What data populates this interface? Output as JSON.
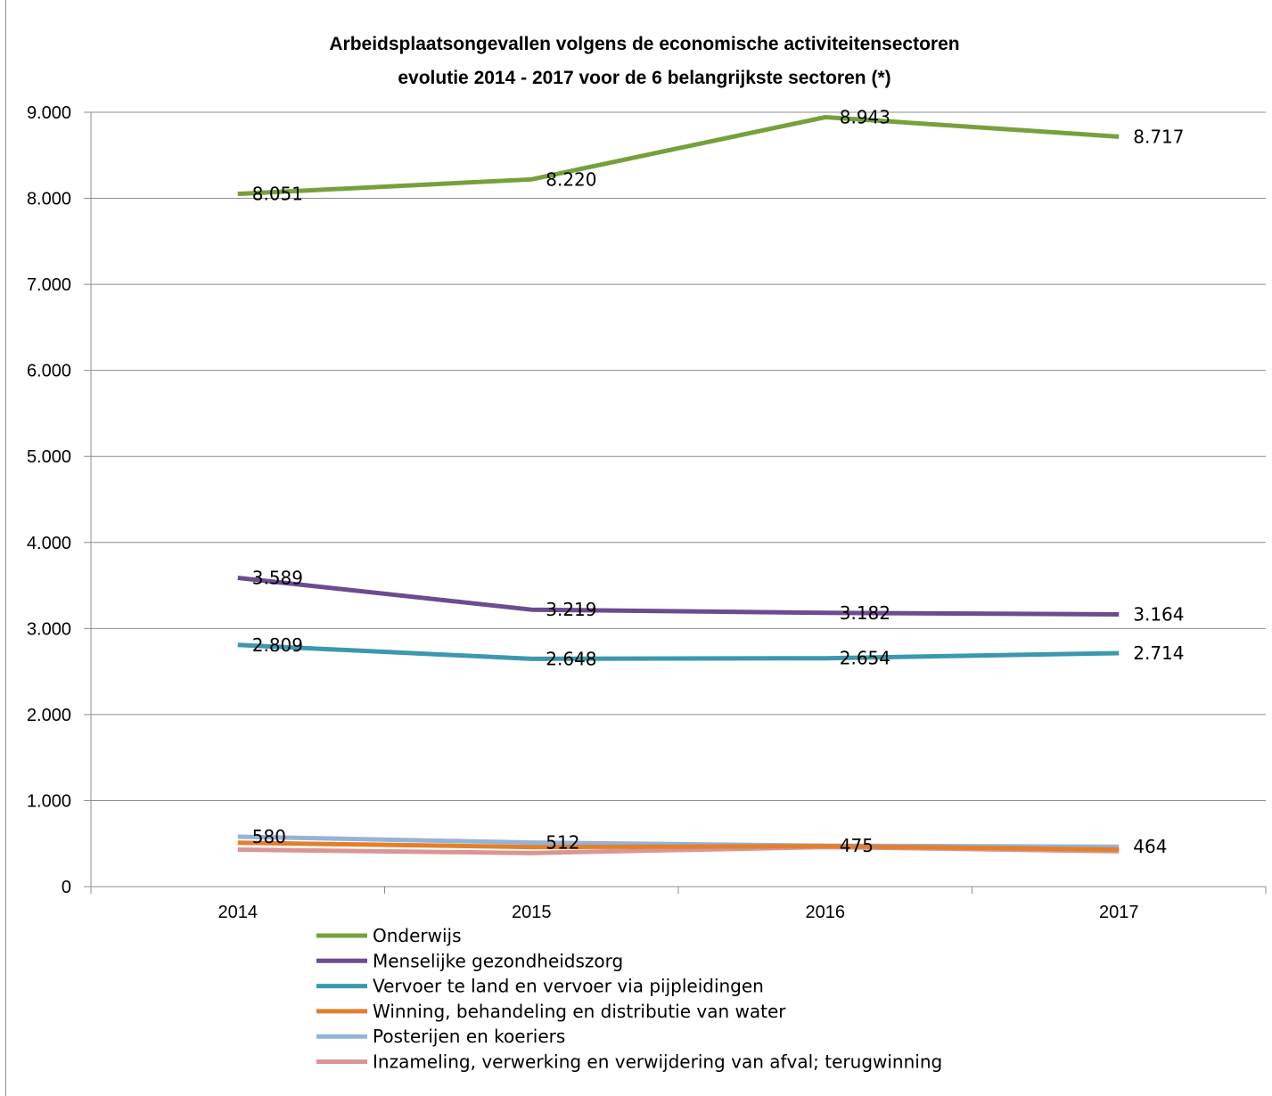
{
  "chart_data": {
    "type": "line",
    "title": "Arbeidsplaatsongevallen volgens de economische activiteitensectoren",
    "subtitle": "evolutie 2014 - 2017 voor de 6 belangrijkste sectoren (*)",
    "xlabel": "",
    "ylabel": "",
    "categories": [
      "2014",
      "2015",
      "2016",
      "2017"
    ],
    "ylim": [
      0,
      9000
    ],
    "yticks": [
      0,
      1000,
      2000,
      3000,
      4000,
      5000,
      6000,
      7000,
      8000,
      9000
    ],
    "ytick_labels": [
      "0",
      "1.000",
      "2.000",
      "3.000",
      "4.000",
      "5.000",
      "6.000",
      "7.000",
      "8.000",
      "9.000"
    ],
    "grid": "horizontal",
    "legend_position": "bottom",
    "series": [
      {
        "name": "Onderwijs",
        "color": "#77a03c",
        "values": [
          8051,
          8220,
          8943,
          8717
        ],
        "labels": [
          "8.051",
          "8.220",
          "8.943",
          "8.717"
        ]
      },
      {
        "name": "Menselijke gezondheidszorg",
        "color": "#6b4c8e",
        "values": [
          3589,
          3219,
          3182,
          3164
        ],
        "labels": [
          "3.589",
          "3.219",
          "3.182",
          "3.164"
        ]
      },
      {
        "name": "Vervoer te land en vervoer via pijpleidingen",
        "color": "#3b98ad",
        "values": [
          2809,
          2648,
          2654,
          2714
        ],
        "labels": [
          "2.809",
          "2.648",
          "2.654",
          "2.714"
        ]
      },
      {
        "name": "Winning, behandeling en distributie van water",
        "color": "#e2802c",
        "values": [
          510,
          460,
          470,
          430
        ],
        "labels": null
      },
      {
        "name": "Posterijen en koeriers",
        "color": "#95b3d7",
        "values": [
          580,
          512,
          475,
          464
        ],
        "labels": [
          "580",
          "512",
          "475",
          "464"
        ]
      },
      {
        "name": "Inzameling, verwerking en verwijdering van afval; terugwinning",
        "color": "#d99694",
        "values": [
          430,
          390,
          460,
          410
        ],
        "labels": null
      }
    ]
  }
}
